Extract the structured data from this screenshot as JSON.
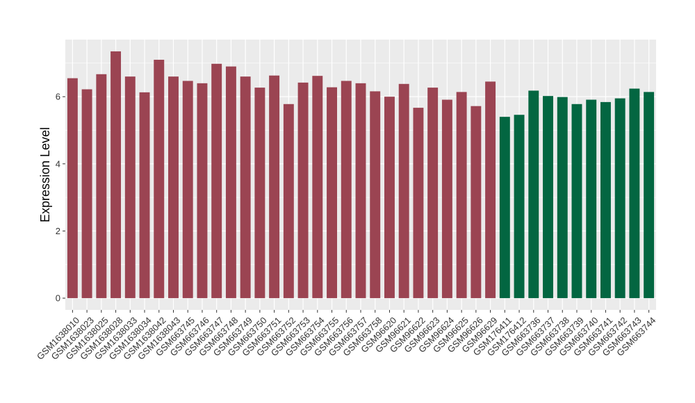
{
  "chart_data": {
    "type": "bar",
    "title": "",
    "xlabel": "",
    "ylabel": "Expression Level",
    "ylim": [
      -0.35,
      7.7
    ],
    "yticks": [
      0,
      2,
      4,
      6
    ],
    "grid": true,
    "legend": "none",
    "colors": {
      "group_a": "#9b4452",
      "group_b": "#036641",
      "panel_bg": "#ebebeb",
      "grid": "#ffffff"
    },
    "categories": [
      "GSM1638010",
      "GSM1638023",
      "GSM1638025",
      "GSM1638028",
      "GSM1638033",
      "GSM1638034",
      "GSM1638042",
      "GSM1638043",
      "GSM663745",
      "GSM663746",
      "GSM663747",
      "GSM663748",
      "GSM663749",
      "GSM663750",
      "GSM663751",
      "GSM663752",
      "GSM663753",
      "GSM663754",
      "GSM663755",
      "GSM663756",
      "GSM663757",
      "GSM663758",
      "GSM96620",
      "GSM96621",
      "GSM96622",
      "GSM96623",
      "GSM96624",
      "GSM96625",
      "GSM96626",
      "GSM96629",
      "GSM176411",
      "GSM176412",
      "GSM663736",
      "GSM663737",
      "GSM663738",
      "GSM663739",
      "GSM663740",
      "GSM663741",
      "GSM663742",
      "GSM663743",
      "GSM663744"
    ],
    "values": [
      6.55,
      6.22,
      6.67,
      7.35,
      6.6,
      6.13,
      7.1,
      6.6,
      6.47,
      6.4,
      6.98,
      6.9,
      6.6,
      6.27,
      6.63,
      5.78,
      6.42,
      6.62,
      6.28,
      6.47,
      6.4,
      6.16,
      6.0,
      6.38,
      5.67,
      6.27,
      5.91,
      6.14,
      5.72,
      6.45,
      5.4,
      5.46,
      6.18,
      6.02,
      5.99,
      5.78,
      5.91,
      5.84,
      5.95,
      6.24,
      6.14
    ],
    "groups": [
      "a",
      "a",
      "a",
      "a",
      "a",
      "a",
      "a",
      "a",
      "a",
      "a",
      "a",
      "a",
      "a",
      "a",
      "a",
      "a",
      "a",
      "a",
      "a",
      "a",
      "a",
      "a",
      "a",
      "a",
      "a",
      "a",
      "a",
      "a",
      "a",
      "a",
      "b",
      "b",
      "b",
      "b",
      "b",
      "b",
      "b",
      "b",
      "b",
      "b",
      "b"
    ]
  }
}
